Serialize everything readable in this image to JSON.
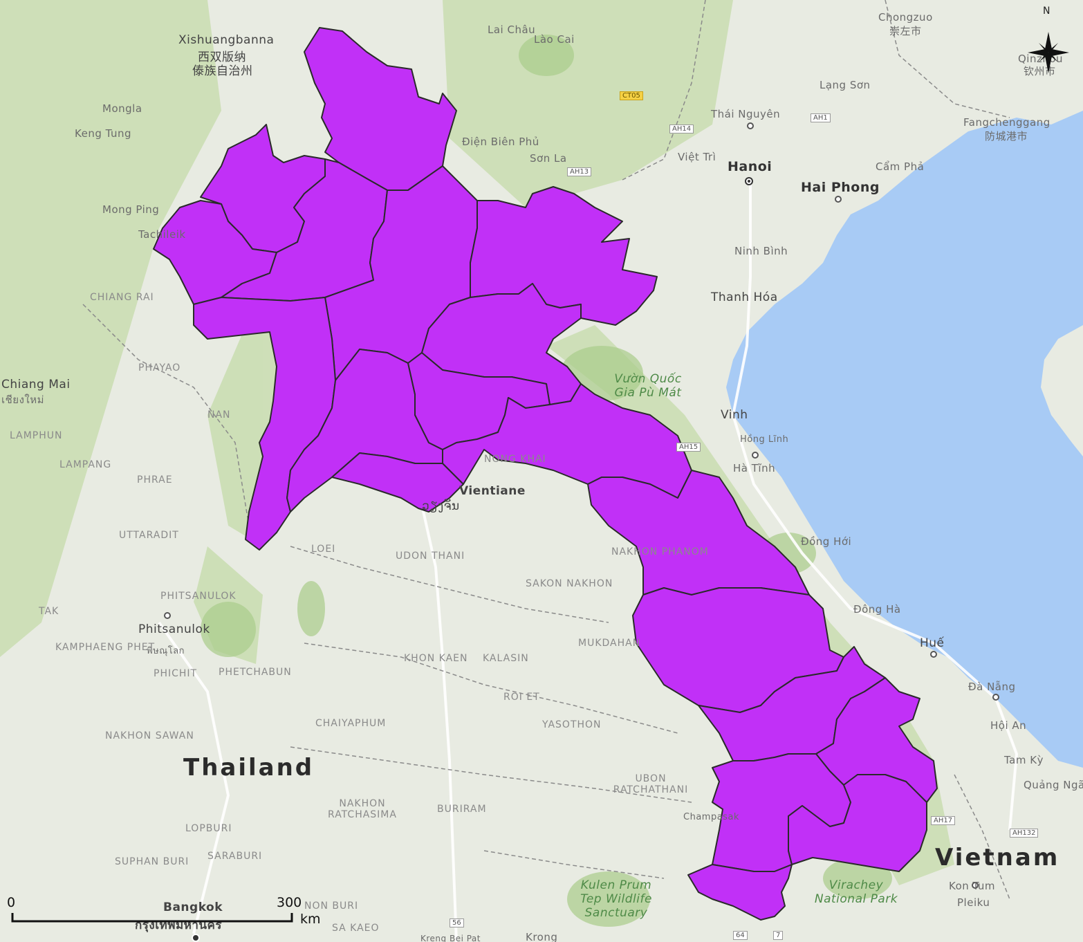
{
  "map": {
    "colors": {
      "land": "#e8ebe2",
      "sea": "#a8cbf5",
      "forest": "#b9d79b",
      "highlight_region": "#c130f7",
      "region_border": "#2a2a2a"
    },
    "highlighted_region_count": 17,
    "labels": {
      "countries": {
        "thailand": "Thailand",
        "vietnam": "Vietnam"
      },
      "cities": {
        "xishuangbanna": "Xishuangbanna",
        "xishuangbanna_cn": "西双版纳",
        "xishuangbanna_cn2": "傣族自治州",
        "laichau": "Lai Châu",
        "laocai": "Lào Cai",
        "chongzuo": "Chongzuo",
        "chongzuo_cn": "崇左市",
        "qinzhou": "Qinzhou",
        "qinzhou_cn": "钦州市",
        "langson": "Lạng Sơn",
        "thainguyen": "Thái Nguyên",
        "fangchenggang": "Fangchenggang",
        "fangchenggang_cn": "防城港市",
        "mongla": "Mongla",
        "kengtung": "Keng Tung",
        "dienbienphu": "Điện Biên Phủ",
        "sonla": "Sơn La",
        "viettri": "Việt Trì",
        "hanoi": "Hanoi",
        "camphe": "Cẩm Phả",
        "haiphong": "Hai Phong",
        "mongping": "Mong Ping",
        "tachileik": "Tachileik",
        "ninhbinh": "Ninh Bình",
        "thanhhoa": "Thanh Hóa",
        "chiangmai": "Chiang Mai",
        "chiangmai_th": "เชียงใหม่",
        "vinh": "Vinh",
        "hongling": "Hồng Lĩnh",
        "hatinh": "Hà Tĩnh",
        "vientiane": "Vientiane",
        "vientiane_lo": "ວຽງຈັນ",
        "donghoi": "Đồng Hới",
        "dongha": "Đông Hà",
        "hue": "Huế",
        "phitsanulok": "Phitsanulok",
        "phitsanulok_th": "พิษณุโลก",
        "danang": "Đà Nẵng",
        "hoian": "Hội An",
        "tamky": "Tam Kỳ",
        "quangngai": "Quảng Ngãi",
        "champasak": "Champasak",
        "bangkok": "Bangkok",
        "bangkok_th": "กรุงเทพมหานคร",
        "kontum": "Kon Tum",
        "pleiku": "Pleiku",
        "krong": "Krong",
        "krongbei": "Kreng Bei Pat"
      },
      "provinces": {
        "chiangrai": "CHIANG RAI",
        "phayao": "PHAYAO",
        "nan": "NAN",
        "lamphun": "LAMPHUN",
        "lampang": "LAMPANG",
        "phrae": "PHRAE",
        "uttaradit": "UTTARADIT",
        "loei": "LOEI",
        "udonthani": "UDON THANI",
        "nakhonphanom": "NAKHON PHANOM",
        "sakonnakhon": "SAKON NAKHON",
        "phitsanulok": "PHITSANULOK",
        "tak": "TAK",
        "kamphaengphet": "KAMPHAENG PHET",
        "phichit": "PHICHIT",
        "phetchabun": "PHETCHABUN",
        "khonkaen": "KHON KAEN",
        "kalasin": "KALASIN",
        "mukdahan": "MUKDAHAN",
        "roiet": "ROI ET",
        "chaiyaphum": "CHAIYAPHUM",
        "yasothon": "YASOTHON",
        "nakhonsawan": "NAKHON SAWAN",
        "ubon": "UBON RATCHATHANI",
        "nakhonratchasima": "NAKHON RATCHASIMA",
        "buriram": "BURIRAM",
        "lopburi": "LOPBURI",
        "saraburi": "SARABURI",
        "suphanburi": "SUPHAN BURI",
        "nonthaburi": "NON BURI",
        "sakaeo": "SA KAEO",
        "nongkhai": "NONG KHAI"
      },
      "parks": {
        "puhat": "Vườn Quốc Gia Pù Mát",
        "kulen": "Kulen Prum Tep Wildlife Sanctuary",
        "virachey": "Virachey National Park"
      },
      "roads": {
        "ct05": "CT05",
        "ah14": "AH14",
        "ah1": "AH1",
        "ah13": "AH13",
        "ah15": "AH15",
        "ah17": "AH17",
        "ah132": "AH132",
        "r56": "56",
        "r64": "64",
        "r7": "7"
      }
    },
    "north_arrow": {
      "label": "N"
    },
    "scale_bar": {
      "min_label": "0",
      "max_label": "300",
      "unit": "km"
    }
  }
}
